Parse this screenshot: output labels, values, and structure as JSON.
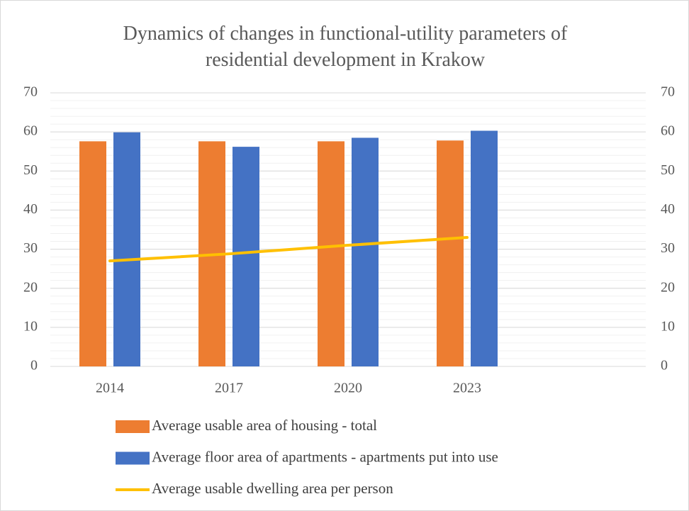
{
  "chart_data": {
    "type": "bar",
    "title": "Dynamics of changes in functional-utility parameters of residential development in Krakow",
    "categories": [
      "2014",
      "2017",
      "2020",
      "2023",
      null
    ],
    "series": [
      {
        "name": "Average usable area of housing - total",
        "type": "bar",
        "color": "#ed7d31",
        "values": [
          57.6,
          57.6,
          57.6,
          57.8,
          null
        ]
      },
      {
        "name": "Average floor area of apartments - apartments put into use",
        "type": "bar",
        "color": "#4472c4",
        "values": [
          59.9,
          56.2,
          58.5,
          60.3,
          null
        ]
      },
      {
        "name": "Average usable dwelling area per person",
        "type": "line",
        "axis": "y2",
        "color": "#ffc000",
        "values": [
          27.0,
          28.8,
          31.0,
          33.0,
          null
        ]
      }
    ],
    "ylim": [
      0,
      70
    ],
    "yticks": [
      0,
      10,
      20,
      30,
      40,
      50,
      60,
      70
    ],
    "y2lim": [
      0,
      70
    ],
    "y2ticks": [
      0,
      10,
      20,
      30,
      40,
      50,
      60,
      70
    ],
    "grid": true,
    "minor_grid_step": 2,
    "legend": "bottom"
  }
}
